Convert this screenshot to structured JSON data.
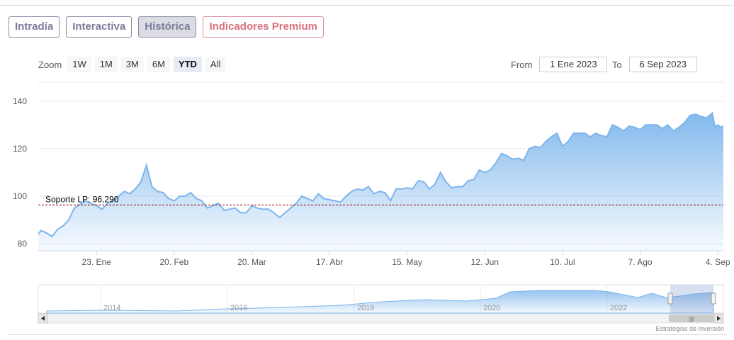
{
  "tabs": [
    {
      "label": "Intradía",
      "active": false
    },
    {
      "label": "Interactiva",
      "active": false
    },
    {
      "label": "Histórica",
      "active": true
    },
    {
      "label": "Indicadores Premium",
      "active": false
    }
  ],
  "zoom": {
    "label": "Zoom",
    "buttons": [
      "1W",
      "1M",
      "3M",
      "6M",
      "YTD",
      "All"
    ],
    "selected": "YTD"
  },
  "range": {
    "from_label": "From",
    "from_value": "1 Ene 2023",
    "to_label": "To",
    "to_value": "6 Sep 2023"
  },
  "credit": "Estrategias de Inversión",
  "colors": {
    "line": "#7cb5ec",
    "fill_top": "#7cb5ec",
    "support_line": "#8b0000",
    "tab_text": "#7b7b9a",
    "tab_premium": "#d8707f"
  },
  "chart_data": {
    "type": "area",
    "x_start": "2023-01-02",
    "x_end": "2023-09-06",
    "ylim": [
      77,
      148
    ],
    "yticks": [
      80,
      100,
      120,
      140
    ],
    "grid": true,
    "xticks": [
      {
        "label": "23. Ene",
        "date": "2023-01-23"
      },
      {
        "label": "20. Feb",
        "date": "2023-02-20"
      },
      {
        "label": "20. Mar",
        "date": "2023-03-20"
      },
      {
        "label": "17. Abr",
        "date": "2023-04-17"
      },
      {
        "label": "15. May",
        "date": "2023-05-15"
      },
      {
        "label": "12. Jun",
        "date": "2023-06-12"
      },
      {
        "label": "10. Jul",
        "date": "2023-07-10"
      },
      {
        "label": "7. Ago",
        "date": "2023-08-07"
      },
      {
        "label": "4. Sep",
        "date": "2023-09-04"
      }
    ],
    "support": {
      "label": "Soporte LP: 96,290",
      "value": 96.29
    },
    "series": [
      {
        "points": [
          [
            "2023-01-02",
            84
          ],
          [
            "2023-01-03",
            85.5
          ],
          [
            "2023-01-05",
            84.5
          ],
          [
            "2023-01-07",
            83
          ],
          [
            "2023-01-09",
            86
          ],
          [
            "2023-01-11",
            87.5
          ],
          [
            "2023-01-13",
            90
          ],
          [
            "2023-01-15",
            95
          ],
          [
            "2023-01-17",
            96.5
          ],
          [
            "2023-01-19",
            98
          ],
          [
            "2023-01-21",
            97
          ],
          [
            "2023-01-23",
            96
          ],
          [
            "2023-01-25",
            94.5
          ],
          [
            "2023-01-27",
            97
          ],
          [
            "2023-01-29",
            98
          ],
          [
            "2023-01-31",
            100
          ],
          [
            "2023-02-02",
            102
          ],
          [
            "2023-02-04",
            101
          ],
          [
            "2023-02-06",
            103
          ],
          [
            "2023-02-08",
            106
          ],
          [
            "2023-02-10",
            113
          ],
          [
            "2023-02-12",
            104
          ],
          [
            "2023-02-14",
            102
          ],
          [
            "2023-02-16",
            101.5
          ],
          [
            "2023-02-18",
            99
          ],
          [
            "2023-02-20",
            98
          ],
          [
            "2023-02-22",
            100
          ],
          [
            "2023-02-24",
            100
          ],
          [
            "2023-02-26",
            101.5
          ],
          [
            "2023-02-28",
            99
          ],
          [
            "2023-03-02",
            98
          ],
          [
            "2023-03-04",
            95
          ],
          [
            "2023-03-06",
            96
          ],
          [
            "2023-03-08",
            97
          ],
          [
            "2023-03-10",
            94
          ],
          [
            "2023-03-12",
            94.5
          ],
          [
            "2023-03-14",
            95
          ],
          [
            "2023-03-16",
            93
          ],
          [
            "2023-03-18",
            93
          ],
          [
            "2023-03-20",
            96
          ],
          [
            "2023-03-22",
            95
          ],
          [
            "2023-03-24",
            94.5
          ],
          [
            "2023-03-26",
            94.5
          ],
          [
            "2023-03-28",
            93
          ],
          [
            "2023-03-30",
            91
          ],
          [
            "2023-04-01",
            93
          ],
          [
            "2023-04-03",
            95
          ],
          [
            "2023-04-05",
            97
          ],
          [
            "2023-04-07",
            100
          ],
          [
            "2023-04-09",
            99
          ],
          [
            "2023-04-11",
            98
          ],
          [
            "2023-04-13",
            101
          ],
          [
            "2023-04-15",
            99
          ],
          [
            "2023-04-17",
            98.5
          ],
          [
            "2023-04-19",
            98
          ],
          [
            "2023-04-21",
            97.5
          ],
          [
            "2023-04-23",
            100
          ],
          [
            "2023-04-25",
            102
          ],
          [
            "2023-04-27",
            103
          ],
          [
            "2023-04-29",
            102.5
          ],
          [
            "2023-05-01",
            104
          ],
          [
            "2023-05-03",
            101
          ],
          [
            "2023-05-05",
            102
          ],
          [
            "2023-05-07",
            101.5
          ],
          [
            "2023-05-09",
            98
          ],
          [
            "2023-05-11",
            103
          ],
          [
            "2023-05-13",
            103
          ],
          [
            "2023-05-15",
            103.5
          ],
          [
            "2023-05-17",
            103
          ],
          [
            "2023-05-19",
            106.5
          ],
          [
            "2023-05-21",
            106
          ],
          [
            "2023-05-23",
            103
          ],
          [
            "2023-05-25",
            105
          ],
          [
            "2023-05-27",
            110
          ],
          [
            "2023-05-29",
            106
          ],
          [
            "2023-05-31",
            103.5
          ],
          [
            "2023-06-02",
            104
          ],
          [
            "2023-06-04",
            104
          ],
          [
            "2023-06-06",
            106.5
          ],
          [
            "2023-06-08",
            107
          ],
          [
            "2023-06-10",
            111
          ],
          [
            "2023-06-12",
            110
          ],
          [
            "2023-06-14",
            111
          ],
          [
            "2023-06-16",
            114
          ],
          [
            "2023-06-18",
            118
          ],
          [
            "2023-06-20",
            117
          ],
          [
            "2023-06-22",
            115.5
          ],
          [
            "2023-06-24",
            116
          ],
          [
            "2023-06-26",
            115
          ],
          [
            "2023-06-28",
            120
          ],
          [
            "2023-06-30",
            121
          ],
          [
            "2023-07-02",
            120.5
          ],
          [
            "2023-07-04",
            123
          ],
          [
            "2023-07-06",
            125
          ],
          [
            "2023-07-08",
            126.5
          ],
          [
            "2023-07-10",
            121
          ],
          [
            "2023-07-12",
            123
          ],
          [
            "2023-07-14",
            126.5
          ],
          [
            "2023-07-16",
            126.5
          ],
          [
            "2023-07-18",
            126.5
          ],
          [
            "2023-07-20",
            125
          ],
          [
            "2023-07-22",
            126.5
          ],
          [
            "2023-07-24",
            125.5
          ],
          [
            "2023-07-26",
            125
          ],
          [
            "2023-07-28",
            130
          ],
          [
            "2023-07-30",
            129
          ],
          [
            "2023-08-01",
            127.5
          ],
          [
            "2023-08-03",
            129.5
          ],
          [
            "2023-08-05",
            129
          ],
          [
            "2023-08-07",
            128
          ],
          [
            "2023-08-09",
            130
          ],
          [
            "2023-08-11",
            130
          ],
          [
            "2023-08-13",
            130
          ],
          [
            "2023-08-15",
            128.5
          ],
          [
            "2023-08-17",
            130
          ],
          [
            "2023-08-19",
            127.5
          ],
          [
            "2023-08-21",
            129
          ],
          [
            "2023-08-23",
            131
          ],
          [
            "2023-08-25",
            134
          ],
          [
            "2023-08-27",
            134.5
          ],
          [
            "2023-08-29",
            133.5
          ],
          [
            "2023-08-31",
            133
          ],
          [
            "2023-09-02",
            135
          ],
          [
            "2023-09-03",
            129
          ],
          [
            "2023-09-04",
            130
          ],
          [
            "2023-09-05",
            129
          ],
          [
            "2023-09-06",
            129.5
          ]
        ]
      }
    ]
  },
  "navigator": {
    "labels": [
      "2014",
      "2016",
      "2018",
      "2020",
      "2022"
    ]
  }
}
